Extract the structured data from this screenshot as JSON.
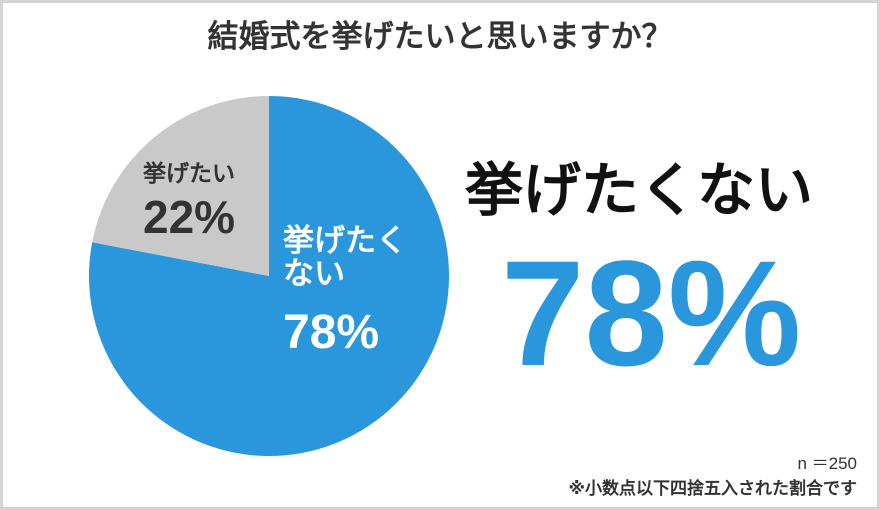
{
  "chart_data": {
    "type": "pie",
    "title": "結婚式を挙げたいと思いますか？",
    "categories": [
      "挙げたくない",
      "挙げたい"
    ],
    "values": [
      78,
      22
    ],
    "value_labels": [
      "78%",
      "22%"
    ],
    "colors": [
      "#2a97dd",
      "#c9c9c9"
    ],
    "notes": [
      "n ＝250",
      "※小数点以下四捨五入された割合です"
    ]
  }
}
